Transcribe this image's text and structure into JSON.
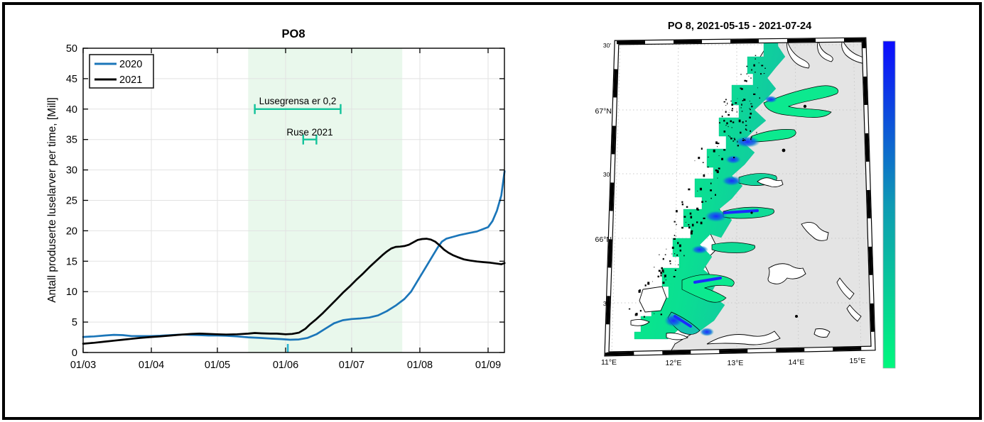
{
  "figure": {
    "background": "#ffffff",
    "border_color": "#000000"
  },
  "chart_data": {
    "type": "line",
    "title": "PO8",
    "xlabel": "",
    "ylabel": "Antall produserte luselarver per time, [Mill]",
    "ylim": [
      0,
      50
    ],
    "yticks": [
      0,
      5,
      10,
      15,
      20,
      25,
      30,
      35,
      40,
      45,
      50
    ],
    "x_reference": "days since 01/03",
    "x_domain_days": [
      0,
      191.5
    ],
    "xticks": [
      {
        "label": "01/03",
        "day": 0
      },
      {
        "label": "01/04",
        "day": 31
      },
      {
        "label": "01/05",
        "day": 61
      },
      {
        "label": "01/06",
        "day": 92
      },
      {
        "label": "01/07",
        "day": 122
      },
      {
        "label": "01/08",
        "day": 153
      },
      {
        "label": "01/09",
        "day": 184
      }
    ],
    "grid": true,
    "legend_position": "top-left",
    "shaded_region": {
      "meaning": "2021-05-15 to 2021-07-24",
      "start_day": 75,
      "end_day": 145,
      "color": "#e9f8ec"
    },
    "series": [
      {
        "name": "2020",
        "color": "#1b76b9",
        "points": [
          [
            0,
            2.55
          ],
          [
            5,
            2.65
          ],
          [
            10,
            2.8
          ],
          [
            14,
            2.9
          ],
          [
            18,
            2.85
          ],
          [
            22,
            2.7
          ],
          [
            26,
            2.7
          ],
          [
            31,
            2.7
          ],
          [
            35,
            2.75
          ],
          [
            40,
            2.85
          ],
          [
            45,
            2.95
          ],
          [
            49,
            2.9
          ],
          [
            53,
            2.85
          ],
          [
            57,
            2.8
          ],
          [
            61,
            2.8
          ],
          [
            65,
            2.75
          ],
          [
            70,
            2.65
          ],
          [
            75,
            2.5
          ],
          [
            80,
            2.4
          ],
          [
            85,
            2.3
          ],
          [
            90,
            2.2
          ],
          [
            94,
            2.1
          ],
          [
            98,
            2.15
          ],
          [
            102,
            2.4
          ],
          [
            106,
            3.0
          ],
          [
            110,
            3.9
          ],
          [
            114,
            4.8
          ],
          [
            118,
            5.3
          ],
          [
            122,
            5.5
          ],
          [
            126,
            5.6
          ],
          [
            130,
            5.75
          ],
          [
            134,
            6.1
          ],
          [
            138,
            6.8
          ],
          [
            142,
            7.7
          ],
          [
            146,
            8.8
          ],
          [
            149,
            10.0
          ],
          [
            153,
            12.4
          ],
          [
            156,
            14.2
          ],
          [
            159,
            16.0
          ],
          [
            161,
            17.2
          ],
          [
            163,
            18.2
          ],
          [
            165,
            18.7
          ],
          [
            168,
            19.0
          ],
          [
            171,
            19.3
          ],
          [
            175,
            19.6
          ],
          [
            179,
            19.9
          ],
          [
            184,
            20.6
          ],
          [
            186,
            21.6
          ],
          [
            188,
            23.3
          ],
          [
            190,
            25.8
          ],
          [
            191.5,
            29.8
          ]
        ]
      },
      {
        "name": "2021",
        "color": "#000000",
        "points": [
          [
            0,
            1.45
          ],
          [
            5,
            1.6
          ],
          [
            10,
            1.8
          ],
          [
            14,
            1.95
          ],
          [
            18,
            2.1
          ],
          [
            22,
            2.25
          ],
          [
            26,
            2.4
          ],
          [
            31,
            2.55
          ],
          [
            35,
            2.65
          ],
          [
            40,
            2.8
          ],
          [
            45,
            2.95
          ],
          [
            49,
            3.05
          ],
          [
            53,
            3.1
          ],
          [
            57,
            3.05
          ],
          [
            61,
            3.0
          ],
          [
            65,
            2.95
          ],
          [
            70,
            3.0
          ],
          [
            75,
            3.1
          ],
          [
            78,
            3.2
          ],
          [
            81,
            3.15
          ],
          [
            85,
            3.1
          ],
          [
            88,
            3.1
          ],
          [
            92,
            3.0
          ],
          [
            95,
            3.05
          ],
          [
            98,
            3.25
          ],
          [
            101,
            3.9
          ],
          [
            103,
            4.6
          ],
          [
            106,
            5.5
          ],
          [
            109,
            6.5
          ],
          [
            112,
            7.6
          ],
          [
            115,
            8.7
          ],
          [
            118,
            9.8
          ],
          [
            121,
            10.8
          ],
          [
            124,
            11.9
          ],
          [
            127,
            12.9
          ],
          [
            130,
            14.0
          ],
          [
            133,
            15.0
          ],
          [
            136,
            16.0
          ],
          [
            138,
            16.6
          ],
          [
            140,
            17.1
          ],
          [
            142,
            17.35
          ],
          [
            144,
            17.4
          ],
          [
            146,
            17.5
          ],
          [
            148,
            17.7
          ],
          [
            150,
            18.1
          ],
          [
            152,
            18.5
          ],
          [
            154,
            18.65
          ],
          [
            156,
            18.7
          ],
          [
            158,
            18.55
          ],
          [
            160,
            18.2
          ],
          [
            162,
            17.6
          ],
          [
            164,
            16.9
          ],
          [
            166,
            16.4
          ],
          [
            168,
            16.0
          ],
          [
            170,
            15.7
          ],
          [
            173,
            15.3
          ],
          [
            176,
            15.1
          ],
          [
            179,
            14.95
          ],
          [
            182,
            14.85
          ],
          [
            185,
            14.75
          ],
          [
            188,
            14.6
          ],
          [
            190,
            14.5
          ],
          [
            191.5,
            14.7
          ]
        ]
      }
    ],
    "errorbars": [
      {
        "label": "Lusegrensa er 0,2",
        "y": 40,
        "start_day": 78,
        "end_day": 117,
        "color": "#12c39a"
      },
      {
        "label": "Ruse 2021",
        "y": 35,
        "start_day": 100,
        "end_day": 106,
        "color": "#12c39a"
      }
    ],
    "event_tick": {
      "day": 93,
      "y_from": 0,
      "y_to": 1.4,
      "color": "#2bb3cf"
    }
  },
  "map": {
    "title": "PO 8, 2021-05-15 - 2021-07-24",
    "lat_labels": [
      "30'",
      "67°N",
      "30'",
      "66°N",
      "30'"
    ],
    "lon_labels": [
      "11°E",
      "12°E",
      "13°E",
      "14°E",
      "15°E"
    ],
    "land_color": "#e4e4e4",
    "field_colors": {
      "outer": "#06ef85",
      "inner": "#14c2a6",
      "fjord_blue": "#1b2bff"
    },
    "colorbar": {
      "top_color": "#0b0bff",
      "mid_color": "#0e9ab4",
      "bottom_color": "#00f87d"
    }
  }
}
